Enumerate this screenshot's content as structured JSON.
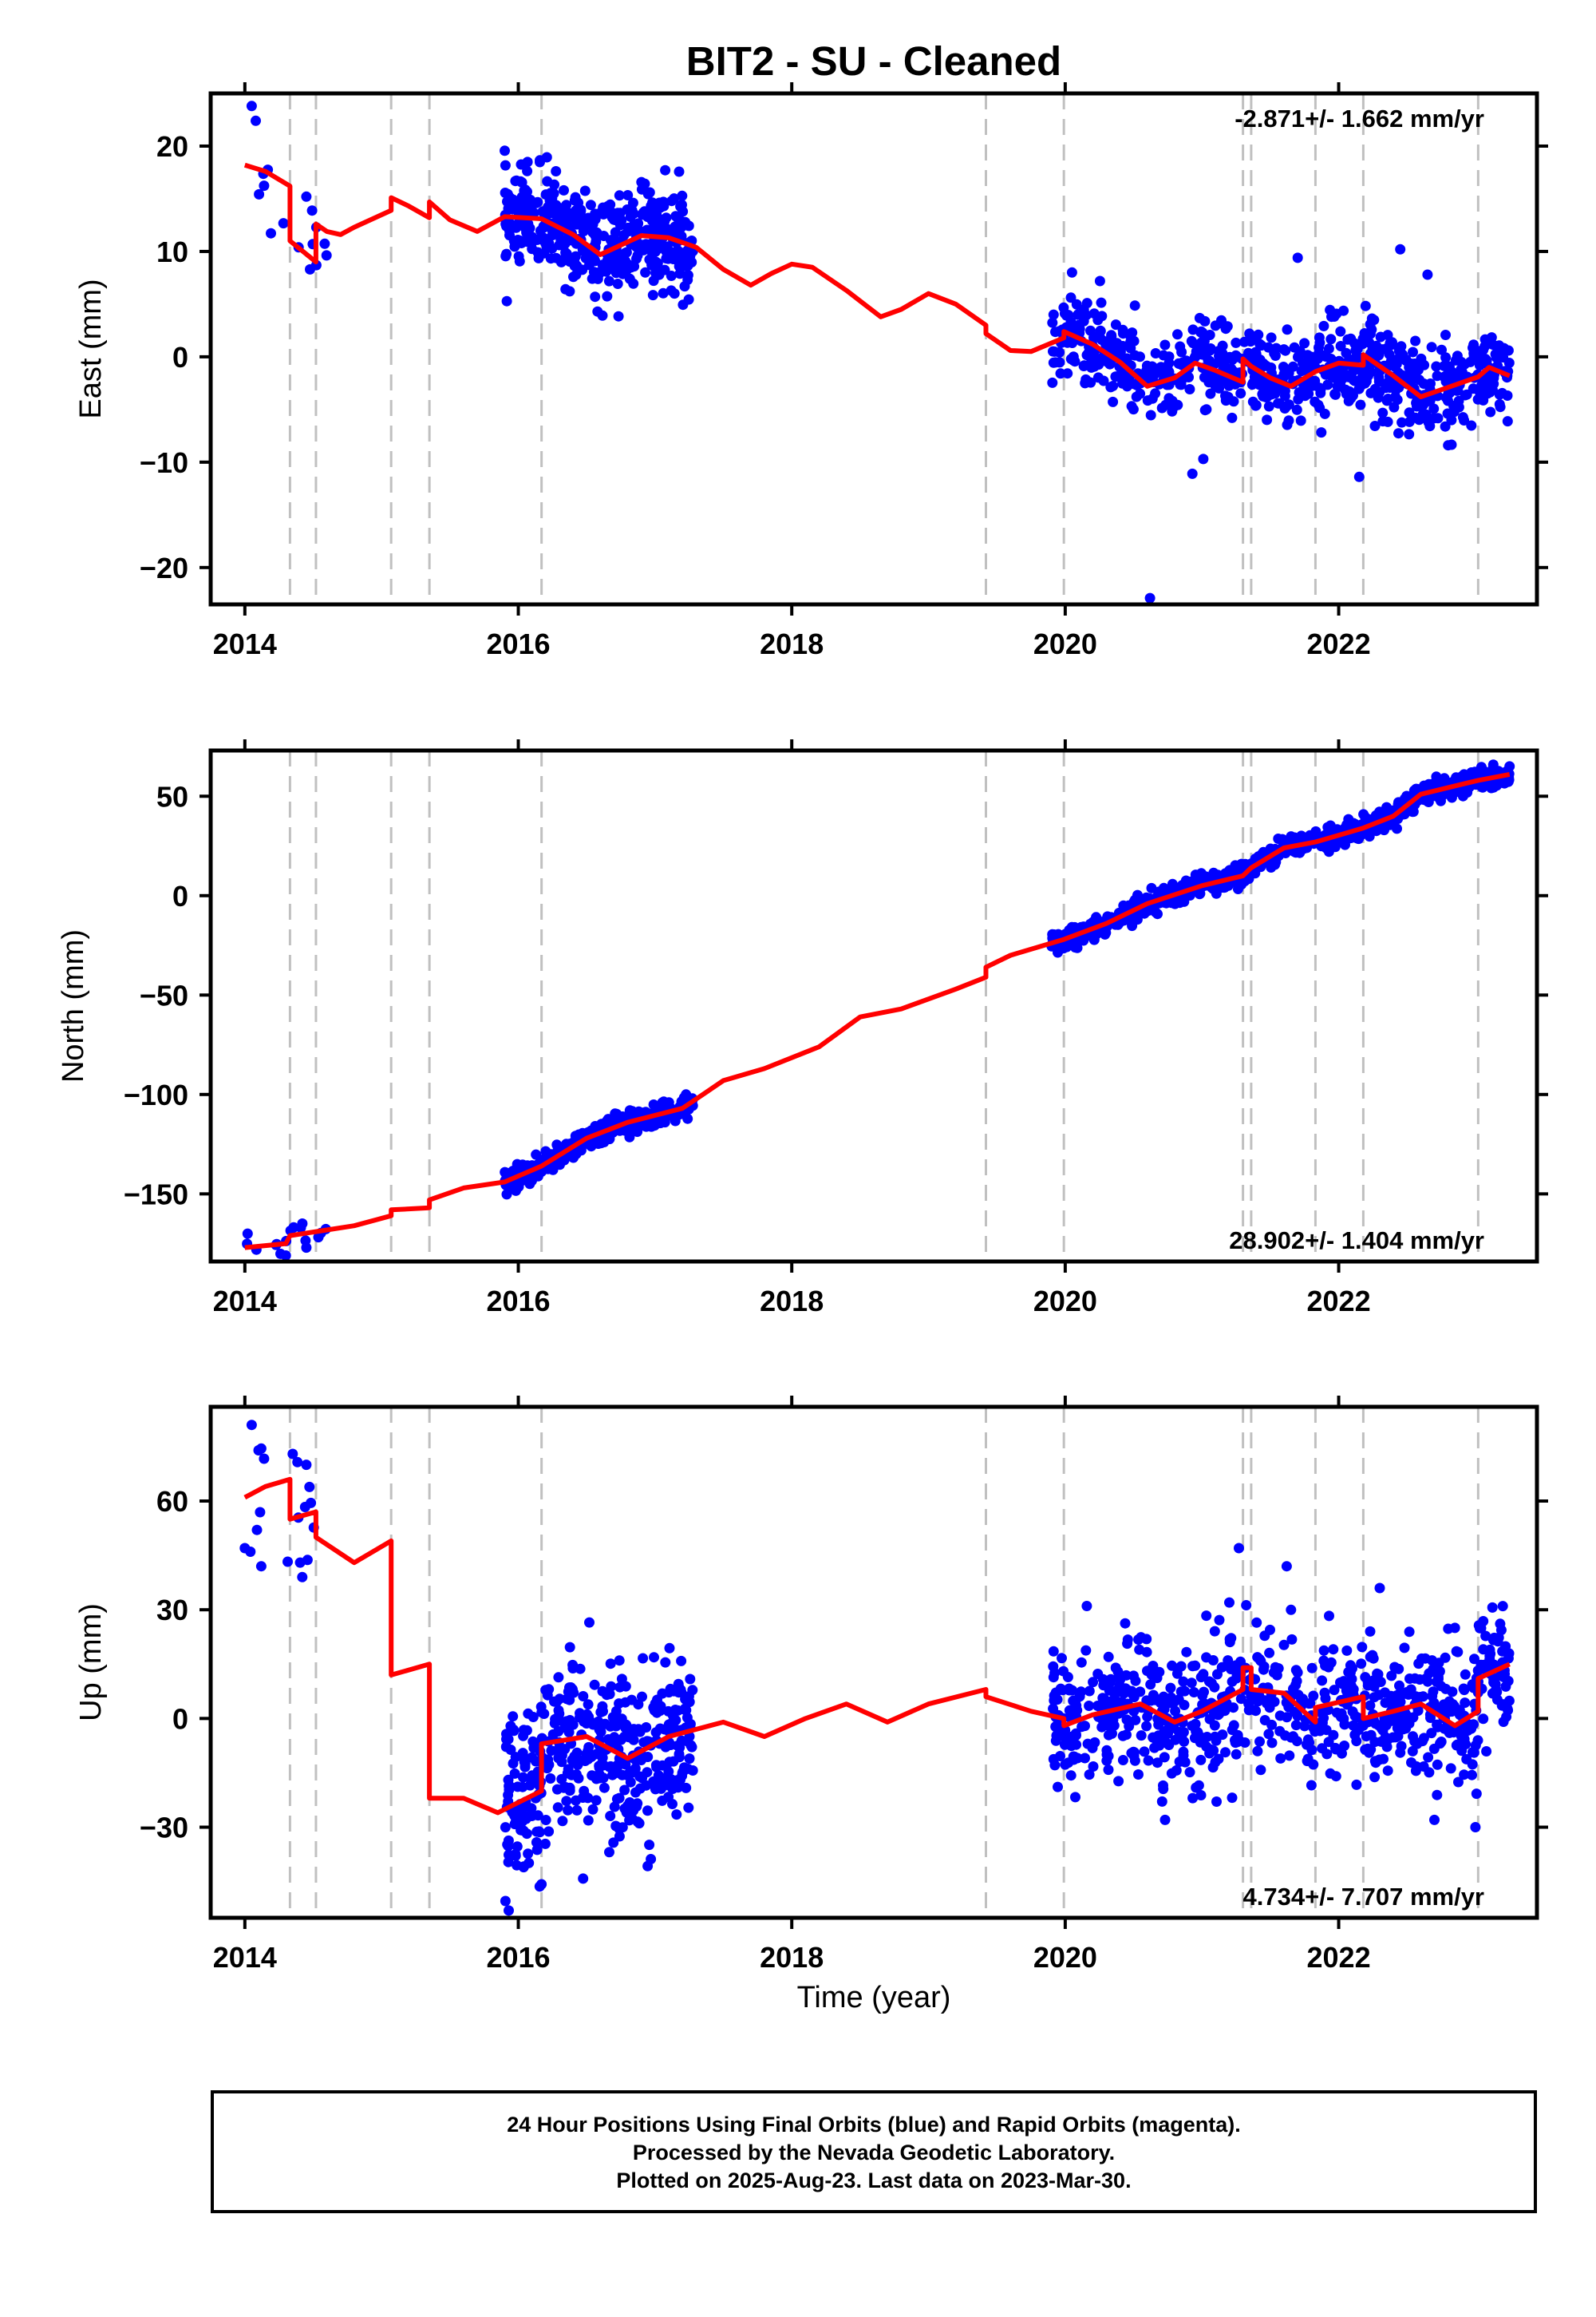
{
  "title": "BIT2  - SU - Cleaned",
  "xlabel": "Time (year)",
  "caption": [
    "24 Hour Positions Using Final Orbits (blue) and Rapid Orbits (magenta).",
    "Processed by the Nevada Geodetic Laboratory.",
    "Plotted on 2025-Aug-23. Last data on 2023-Mar-30."
  ],
  "colors": {
    "points": "#0000ff",
    "model": "#ff0000",
    "breaks": "#c0c0c0",
    "frame": "#000000"
  },
  "chart_data": [
    {
      "type": "scatter",
      "ylabel": "East (mm)",
      "rate_label": "-2.871+/- 1.662 mm/yr",
      "rate_position": "top-right",
      "xlim": [
        2013.75,
        2023.45
      ],
      "ylim": [
        -23.5,
        25
      ],
      "xticks": [
        2014,
        2016,
        2018,
        2020,
        2022
      ],
      "yticks": [
        -20,
        -10,
        0,
        10,
        20
      ],
      "break_years": [
        2014.33,
        2014.52,
        2015.07,
        2015.35,
        2016.17,
        2019.42,
        2019.99,
        2021.3,
        2021.36,
        2021.83,
        2022.18,
        2023.02
      ],
      "model_line": [
        [
          2014.0,
          18.2
        ],
        [
          2014.15,
          17.6
        ],
        [
          2014.33,
          16.2
        ],
        [
          2014.33,
          11.0
        ],
        [
          2014.52,
          9.0
        ],
        [
          2014.52,
          12.6
        ],
        [
          2014.6,
          11.9
        ],
        [
          2014.7,
          11.6
        ],
        [
          2014.8,
          12.3
        ],
        [
          2015.07,
          13.9
        ],
        [
          2015.07,
          15.1
        ],
        [
          2015.2,
          14.3
        ],
        [
          2015.35,
          13.2
        ],
        [
          2015.35,
          14.7
        ],
        [
          2015.5,
          13.0
        ],
        [
          2015.7,
          11.9
        ],
        [
          2015.9,
          13.3
        ],
        [
          2016.17,
          13.1
        ],
        [
          2016.4,
          11.6
        ],
        [
          2016.6,
          9.7
        ],
        [
          2016.75,
          10.6
        ],
        [
          2016.9,
          11.5
        ],
        [
          2017.1,
          11.3
        ],
        [
          2017.3,
          10.4
        ],
        [
          2017.5,
          8.3
        ],
        [
          2017.7,
          6.8
        ],
        [
          2017.85,
          7.9
        ],
        [
          2018.0,
          8.8
        ],
        [
          2018.15,
          8.5
        ],
        [
          2018.4,
          6.3
        ],
        [
          2018.65,
          3.8
        ],
        [
          2018.8,
          4.5
        ],
        [
          2019.0,
          6.0
        ],
        [
          2019.2,
          5.0
        ],
        [
          2019.42,
          3.0
        ],
        [
          2019.42,
          2.2
        ],
        [
          2019.6,
          0.6
        ],
        [
          2019.75,
          0.5
        ],
        [
          2019.99,
          1.8
        ],
        [
          2019.99,
          2.4
        ],
        [
          2020.2,
          1.2
        ],
        [
          2020.4,
          -0.5
        ],
        [
          2020.6,
          -2.8
        ],
        [
          2020.8,
          -2.0
        ],
        [
          2020.95,
          -0.6
        ],
        [
          2021.1,
          -1.3
        ],
        [
          2021.3,
          -2.4
        ],
        [
          2021.3,
          -0.2
        ],
        [
          2021.36,
          -0.9
        ],
        [
          2021.5,
          -2.0
        ],
        [
          2021.65,
          -2.8
        ],
        [
          2021.83,
          -1.4
        ],
        [
          2022.0,
          -0.6
        ],
        [
          2022.18,
          -0.8
        ],
        [
          2022.18,
          0.2
        ],
        [
          2022.4,
          -1.8
        ],
        [
          2022.6,
          -3.8
        ],
        [
          2022.8,
          -2.9
        ],
        [
          2023.02,
          -1.9
        ],
        [
          2023.1,
          -1.0
        ],
        [
          2023.25,
          -1.8
        ]
      ],
      "point_clusters": [
        {
          "x_range": [
            2014.0,
            2014.6
          ],
          "y_trend": [
            16.8,
            10.5
          ],
          "spread": 2.2,
          "count": 14
        },
        {
          "x_range": [
            2015.9,
            2017.28
          ],
          "model_follow": true,
          "spread": 2.3,
          "count": 430
        },
        {
          "x_range": [
            2019.9,
            2023.25
          ],
          "model_follow": true,
          "spread": 2.1,
          "count": 760
        }
      ],
      "outliers": [
        [
          2014.05,
          23.8
        ],
        [
          2014.08,
          22.4
        ],
        [
          2014.45,
          15.2
        ],
        [
          2020.62,
          -22.9
        ],
        [
          2020.93,
          -11.1
        ],
        [
          2021.01,
          -9.7
        ],
        [
          2022.15,
          -11.4
        ],
        [
          2021.7,
          9.4
        ],
        [
          2022.45,
          10.2
        ],
        [
          2022.65,
          7.8
        ],
        [
          2020.05,
          8.0
        ]
      ]
    },
    {
      "type": "scatter",
      "ylabel": "North (mm)",
      "rate_label": "28.902+/- 1.404 mm/yr",
      "rate_position": "bottom-right",
      "xlim": [
        2013.75,
        2023.45
      ],
      "ylim": [
        -184,
        73
      ],
      "xticks": [
        2014,
        2016,
        2018,
        2020,
        2022
      ],
      "yticks": [
        -150,
        -100,
        -50,
        0,
        50
      ],
      "break_years": [
        2014.33,
        2014.52,
        2015.07,
        2015.35,
        2016.17,
        2019.42,
        2019.99,
        2021.3,
        2021.36,
        2021.83,
        2022.18,
        2023.02
      ],
      "model_line": [
        [
          2014.0,
          -177
        ],
        [
          2014.3,
          -175
        ],
        [
          2014.33,
          -171
        ],
        [
          2014.52,
          -169
        ],
        [
          2014.8,
          -166
        ],
        [
          2015.07,
          -161
        ],
        [
          2015.07,
          -158
        ],
        [
          2015.35,
          -157
        ],
        [
          2015.35,
          -153
        ],
        [
          2015.6,
          -147
        ],
        [
          2015.9,
          -144
        ],
        [
          2016.17,
          -136
        ],
        [
          2016.5,
          -122
        ],
        [
          2016.8,
          -114
        ],
        [
          2017.2,
          -107
        ],
        [
          2017.5,
          -93
        ],
        [
          2017.8,
          -87
        ],
        [
          2018.2,
          -76
        ],
        [
          2018.5,
          -61
        ],
        [
          2018.8,
          -57
        ],
        [
          2019.2,
          -47
        ],
        [
          2019.42,
          -41
        ],
        [
          2019.42,
          -36
        ],
        [
          2019.6,
          -30
        ],
        [
          2019.99,
          -22
        ],
        [
          2020.3,
          -14
        ],
        [
          2020.6,
          -4
        ],
        [
          2021.0,
          5
        ],
        [
          2021.3,
          10
        ],
        [
          2021.36,
          14
        ],
        [
          2021.6,
          24
        ],
        [
          2021.83,
          27
        ],
        [
          2022.18,
          34
        ],
        [
          2022.4,
          40
        ],
        [
          2022.6,
          51
        ],
        [
          2022.9,
          56
        ],
        [
          2023.02,
          58
        ],
        [
          2023.25,
          61
        ]
      ],
      "point_clusters": [
        {
          "x_range": [
            2014.0,
            2014.6
          ],
          "model_follow": true,
          "spread": 3,
          "count": 14
        },
        {
          "x_range": [
            2015.9,
            2017.28
          ],
          "model_follow": true,
          "spread": 2.6,
          "count": 430
        },
        {
          "x_range": [
            2019.9,
            2023.25
          ],
          "model_follow": true,
          "spread": 2.6,
          "count": 760
        }
      ],
      "outliers": [
        [
          2014.02,
          -170
        ],
        [
          2014.3,
          -181
        ],
        [
          2014.45,
          -177
        ],
        [
          2023.25,
          65
        ]
      ]
    },
    {
      "type": "scatter",
      "ylabel": "Up (mm)",
      "rate_label": "4.734+/- 7.707 mm/yr",
      "rate_position": "bottom-right",
      "xlim": [
        2013.75,
        2023.45
      ],
      "ylim": [
        -55,
        86
      ],
      "xticks": [
        2014,
        2016,
        2018,
        2020,
        2022
      ],
      "yticks": [
        -30,
        0,
        30,
        60
      ],
      "break_years": [
        2014.33,
        2014.52,
        2015.07,
        2015.35,
        2016.17,
        2019.42,
        2019.99,
        2021.3,
        2021.36,
        2021.83,
        2022.18,
        2023.02
      ],
      "model_line": [
        [
          2014.0,
          61
        ],
        [
          2014.15,
          64
        ],
        [
          2014.33,
          66
        ],
        [
          2014.33,
          55
        ],
        [
          2014.52,
          57
        ],
        [
          2014.52,
          50
        ],
        [
          2014.8,
          43
        ],
        [
          2015.07,
          49
        ],
        [
          2015.07,
          12
        ],
        [
          2015.35,
          15
        ],
        [
          2015.35,
          -22
        ],
        [
          2015.6,
          -22
        ],
        [
          2015.85,
          -26
        ],
        [
          2016.17,
          -20
        ],
        [
          2016.17,
          -7
        ],
        [
          2016.5,
          -5
        ],
        [
          2016.8,
          -11
        ],
        [
          2017.1,
          -5
        ],
        [
          2017.5,
          -1
        ],
        [
          2017.8,
          -5
        ],
        [
          2018.1,
          0
        ],
        [
          2018.4,
          4
        ],
        [
          2018.7,
          -1
        ],
        [
          2019.0,
          4
        ],
        [
          2019.42,
          8
        ],
        [
          2019.42,
          6
        ],
        [
          2019.75,
          2
        ],
        [
          2019.99,
          0
        ],
        [
          2019.99,
          -2
        ],
        [
          2020.2,
          1
        ],
        [
          2020.55,
          4
        ],
        [
          2020.8,
          -1
        ],
        [
          2021.0,
          2
        ],
        [
          2021.3,
          8
        ],
        [
          2021.3,
          14
        ],
        [
          2021.36,
          14
        ],
        [
          2021.36,
          8
        ],
        [
          2021.6,
          7
        ],
        [
          2021.83,
          -1
        ],
        [
          2021.83,
          3
        ],
        [
          2022.18,
          6
        ],
        [
          2022.18,
          0
        ],
        [
          2022.4,
          2
        ],
        [
          2022.6,
          4
        ],
        [
          2022.85,
          -2
        ],
        [
          2023.02,
          2
        ],
        [
          2023.02,
          11
        ],
        [
          2023.25,
          15
        ]
      ],
      "point_clusters": [
        {
          "x_range": [
            2014.0,
            2014.6
          ],
          "model_follow": true,
          "spread": 10,
          "count": 14
        },
        {
          "x_range": [
            2015.9,
            2017.28
          ],
          "model_follow": true,
          "spread": 12,
          "count": 430
        },
        {
          "x_range": [
            2019.9,
            2023.25
          ],
          "model_follow": true,
          "spread": 9,
          "count": 760
        }
      ],
      "outliers": [
        [
          2014.05,
          81
        ],
        [
          2014.1,
          74
        ],
        [
          2014.35,
          73
        ],
        [
          2014.45,
          70
        ],
        [
          2014.42,
          39
        ],
        [
          2014.12,
          42
        ],
        [
          2014.0,
          47
        ],
        [
          2015.93,
          -53
        ],
        [
          2021.27,
          47
        ],
        [
          2021.62,
          42
        ],
        [
          2021.2,
          32
        ],
        [
          2022.3,
          36
        ],
        [
          2022.85,
          25
        ],
        [
          2023.2,
          31
        ],
        [
          2020.73,
          -28
        ],
        [
          2022.7,
          -28
        ],
        [
          2023.0,
          -30
        ]
      ]
    }
  ]
}
